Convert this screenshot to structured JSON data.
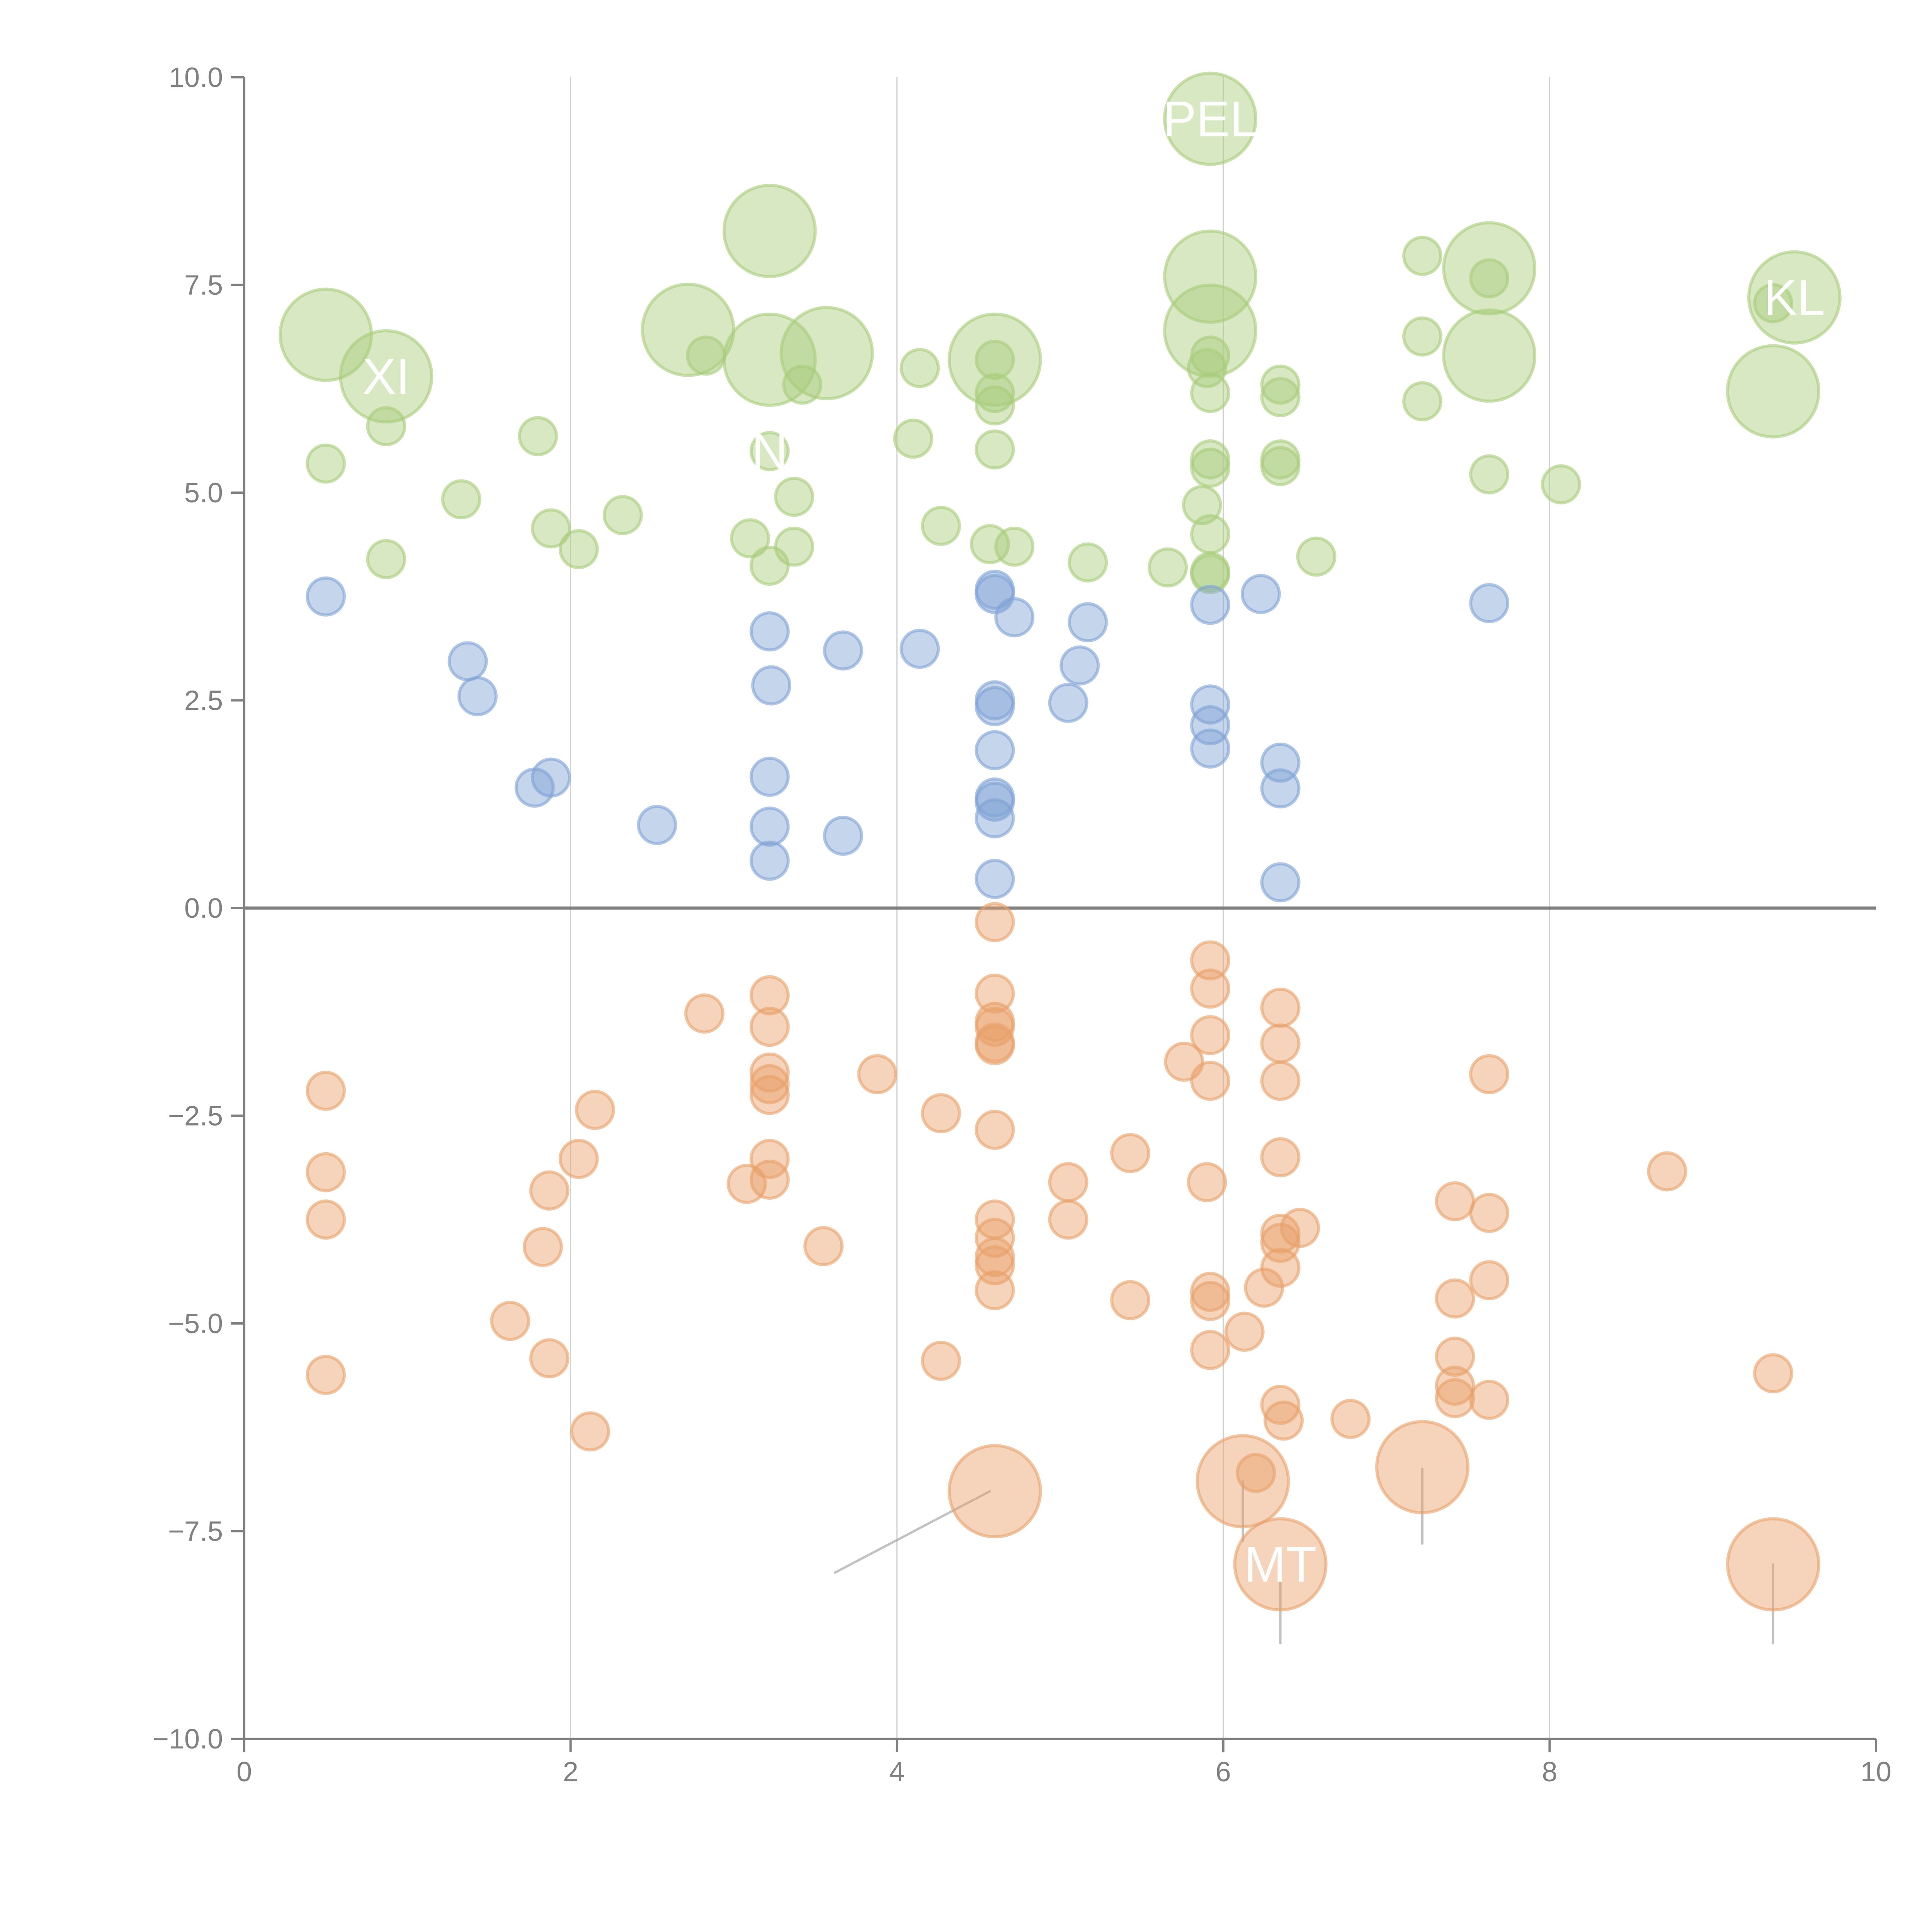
{
  "chart_data": {
    "type": "scatter",
    "title": "",
    "xlabel": "",
    "ylabel": "",
    "xlim": [
      0,
      10
    ],
    "ylim": [
      -10,
      10
    ],
    "x_ticks": [
      "0",
      "2",
      "4",
      "6",
      "8",
      "10"
    ],
    "y_ticks": [
      "−10.0",
      "−7.5",
      "−5.0",
      "−2.5",
      "0.0",
      "2.5",
      "5.0",
      "7.5",
      "10.0"
    ],
    "grid": "vertical",
    "zero_line": true,
    "colors": {
      "green": "#a9cc7a",
      "blue": "#7ea1d4",
      "orange": "#e8a069"
    },
    "series": [
      {
        "name": "green",
        "points": [
          {
            "x": 0.5,
            "y": 6.9,
            "size": "large"
          },
          {
            "x": 0.87,
            "y": 6.4,
            "size": "large",
            "label": "XI"
          },
          {
            "x": 0.87,
            "y": 5.8
          },
          {
            "x": 0.5,
            "y": 5.35
          },
          {
            "x": 0.87,
            "y": 4.2
          },
          {
            "x": 1.33,
            "y": 4.92
          },
          {
            "x": 1.8,
            "y": 5.68
          },
          {
            "x": 1.88,
            "y": 4.57
          },
          {
            "x": 2.05,
            "y": 4.32
          },
          {
            "x": 2.32,
            "y": 4.73
          },
          {
            "x": 2.72,
            "y": 6.96,
            "size": "large"
          },
          {
            "x": 2.83,
            "y": 6.65
          },
          {
            "x": 3.22,
            "y": 8.15,
            "size": "large"
          },
          {
            "x": 3.22,
            "y": 6.6,
            "size": "large"
          },
          {
            "x": 3.57,
            "y": 6.68,
            "size": "large"
          },
          {
            "x": 3.42,
            "y": 6.3
          },
          {
            "x": 3.22,
            "y": 5.5,
            "label": "N"
          },
          {
            "x": 3.37,
            "y": 4.95
          },
          {
            "x": 3.1,
            "y": 4.45
          },
          {
            "x": 3.37,
            "y": 4.35
          },
          {
            "x": 3.22,
            "y": 4.12
          },
          {
            "x": 4.14,
            "y": 6.5
          },
          {
            "x": 4.1,
            "y": 5.65
          },
          {
            "x": 4.27,
            "y": 4.6
          },
          {
            "x": 4.57,
            "y": 4.38
          },
          {
            "x": 4.72,
            "y": 4.35
          },
          {
            "x": 4.6,
            "y": 6.6,
            "size": "large"
          },
          {
            "x": 4.6,
            "y": 6.6
          },
          {
            "x": 4.6,
            "y": 6.2
          },
          {
            "x": 4.6,
            "y": 6.05
          },
          {
            "x": 4.6,
            "y": 5.52
          },
          {
            "x": 5.17,
            "y": 4.16
          },
          {
            "x": 5.66,
            "y": 4.1
          },
          {
            "x": 5.92,
            "y": 9.5,
            "size": "large",
            "label": "PEL"
          },
          {
            "x": 5.92,
            "y": 7.6,
            "size": "large"
          },
          {
            "x": 5.92,
            "y": 6.95,
            "size": "large"
          },
          {
            "x": 5.92,
            "y": 6.65
          },
          {
            "x": 5.9,
            "y": 6.5
          },
          {
            "x": 5.92,
            "y": 6.2
          },
          {
            "x": 5.92,
            "y": 5.4
          },
          {
            "x": 5.92,
            "y": 5.3
          },
          {
            "x": 5.87,
            "y": 4.85
          },
          {
            "x": 5.92,
            "y": 4.5
          },
          {
            "x": 5.92,
            "y": 4.05
          },
          {
            "x": 5.92,
            "y": 4.02
          },
          {
            "x": 6.35,
            "y": 6.3
          },
          {
            "x": 6.35,
            "y": 6.15
          },
          {
            "x": 6.35,
            "y": 5.4
          },
          {
            "x": 6.35,
            "y": 5.32
          },
          {
            "x": 6.57,
            "y": 4.23
          },
          {
            "x": 7.22,
            "y": 7.85
          },
          {
            "x": 7.22,
            "y": 6.88
          },
          {
            "x": 7.22,
            "y": 6.1
          },
          {
            "x": 7.63,
            "y": 7.7,
            "size": "large"
          },
          {
            "x": 7.63,
            "y": 7.58
          },
          {
            "x": 7.63,
            "y": 6.65,
            "size": "large"
          },
          {
            "x": 7.63,
            "y": 5.22
          },
          {
            "x": 8.07,
            "y": 5.1
          },
          {
            "x": 9.5,
            "y": 7.35,
            "size": "large",
            "label": "KL"
          },
          {
            "x": 9.37,
            "y": 7.28
          },
          {
            "x": 9.37,
            "y": 6.22,
            "size": "large"
          }
        ]
      },
      {
        "name": "blue",
        "points": [
          {
            "x": 0.5,
            "y": 3.75
          },
          {
            "x": 1.37,
            "y": 2.97
          },
          {
            "x": 1.43,
            "y": 2.55
          },
          {
            "x": 1.78,
            "y": 1.45
          },
          {
            "x": 1.88,
            "y": 1.57
          },
          {
            "x": 2.53,
            "y": 1.0
          },
          {
            "x": 3.22,
            "y": 3.33
          },
          {
            "x": 3.23,
            "y": 2.68
          },
          {
            "x": 3.22,
            "y": 1.58
          },
          {
            "x": 3.22,
            "y": 0.98
          },
          {
            "x": 3.22,
            "y": 0.57
          },
          {
            "x": 3.67,
            "y": 3.1
          },
          {
            "x": 3.67,
            "y": 0.87
          },
          {
            "x": 4.14,
            "y": 3.12
          },
          {
            "x": 4.6,
            "y": 3.83
          },
          {
            "x": 4.6,
            "y": 3.78
          },
          {
            "x": 4.72,
            "y": 3.5
          },
          {
            "x": 4.6,
            "y": 2.5
          },
          {
            "x": 4.6,
            "y": 2.43
          },
          {
            "x": 4.6,
            "y": 1.9
          },
          {
            "x": 4.6,
            "y": 1.33
          },
          {
            "x": 4.6,
            "y": 1.28
          },
          {
            "x": 4.6,
            "y": 1.08
          },
          {
            "x": 4.6,
            "y": 0.35
          },
          {
            "x": 5.05,
            "y": 2.47
          },
          {
            "x": 5.12,
            "y": 2.92
          },
          {
            "x": 5.17,
            "y": 3.44
          },
          {
            "x": 5.92,
            "y": 3.65
          },
          {
            "x": 5.92,
            "y": 2.45
          },
          {
            "x": 5.92,
            "y": 2.2
          },
          {
            "x": 5.92,
            "y": 1.92
          },
          {
            "x": 6.23,
            "y": 3.78
          },
          {
            "x": 6.35,
            "y": 1.75
          },
          {
            "x": 6.35,
            "y": 1.44
          },
          {
            "x": 6.35,
            "y": 0.31
          },
          {
            "x": 7.63,
            "y": 3.67
          }
        ]
      },
      {
        "name": "orange",
        "points": [
          {
            "x": 0.5,
            "y": -2.2
          },
          {
            "x": 0.5,
            "y": -3.18
          },
          {
            "x": 0.5,
            "y": -3.75
          },
          {
            "x": 0.5,
            "y": -5.62
          },
          {
            "x": 1.63,
            "y": -4.97
          },
          {
            "x": 1.83,
            "y": -4.08
          },
          {
            "x": 1.87,
            "y": -3.4
          },
          {
            "x": 1.87,
            "y": -5.42
          },
          {
            "x": 2.05,
            "y": -3.02
          },
          {
            "x": 2.15,
            "y": -2.43
          },
          {
            "x": 2.12,
            "y": -6.3
          },
          {
            "x": 2.82,
            "y": -1.27
          },
          {
            "x": 3.22,
            "y": -1.05
          },
          {
            "x": 3.22,
            "y": -1.43
          },
          {
            "x": 3.22,
            "y": -1.98
          },
          {
            "x": 3.22,
            "y": -2.12
          },
          {
            "x": 3.22,
            "y": -2.25
          },
          {
            "x": 3.22,
            "y": -3.02
          },
          {
            "x": 3.08,
            "y": -3.32
          },
          {
            "x": 3.22,
            "y": -3.27
          },
          {
            "x": 3.55,
            "y": -4.07
          },
          {
            "x": 3.88,
            "y": -2.0
          },
          {
            "x": 4.27,
            "y": -2.47
          },
          {
            "x": 4.27,
            "y": -5.45
          },
          {
            "x": 4.6,
            "y": -0.17
          },
          {
            "x": 4.6,
            "y": -1.03
          },
          {
            "x": 4.6,
            "y": -1.37
          },
          {
            "x": 4.6,
            "y": -1.43
          },
          {
            "x": 4.6,
            "y": -1.62
          },
          {
            "x": 4.6,
            "y": -1.65
          },
          {
            "x": 4.6,
            "y": -2.67
          },
          {
            "x": 4.6,
            "y": -3.75
          },
          {
            "x": 4.6,
            "y": -3.97
          },
          {
            "x": 4.6,
            "y": -4.2
          },
          {
            "x": 4.6,
            "y": -4.3
          },
          {
            "x": 4.6,
            "y": -4.6
          },
          {
            "x": 4.6,
            "y": -7.02,
            "size": "large"
          },
          {
            "x": 5.05,
            "y": -3.3
          },
          {
            "x": 5.05,
            "y": -3.75
          },
          {
            "x": 5.43,
            "y": -2.95
          },
          {
            "x": 5.43,
            "y": -4.72
          },
          {
            "x": 5.76,
            "y": -1.85
          },
          {
            "x": 5.92,
            "y": -0.63
          },
          {
            "x": 5.92,
            "y": -0.97
          },
          {
            "x": 5.92,
            "y": -1.53
          },
          {
            "x": 5.92,
            "y": -2.08
          },
          {
            "x": 5.9,
            "y": -3.3
          },
          {
            "x": 5.92,
            "y": -4.62
          },
          {
            "x": 5.92,
            "y": -4.73
          },
          {
            "x": 5.92,
            "y": -5.32
          },
          {
            "x": 6.13,
            "y": -5.1
          },
          {
            "x": 6.12,
            "y": -6.9,
            "size": "large"
          },
          {
            "x": 6.2,
            "y": -6.8
          },
          {
            "x": 6.35,
            "y": -7.9,
            "size": "large",
            "label": "MT"
          },
          {
            "x": 6.25,
            "y": -4.57
          },
          {
            "x": 6.35,
            "y": -1.2
          },
          {
            "x": 6.35,
            "y": -1.63
          },
          {
            "x": 6.35,
            "y": -2.08
          },
          {
            "x": 6.35,
            "y": -3.0
          },
          {
            "x": 6.35,
            "y": -3.92
          },
          {
            "x": 6.35,
            "y": -4.03
          },
          {
            "x": 6.47,
            "y": -3.85
          },
          {
            "x": 6.35,
            "y": -4.33
          },
          {
            "x": 6.35,
            "y": -5.98
          },
          {
            "x": 6.37,
            "y": -6.17
          },
          {
            "x": 6.78,
            "y": -6.15
          },
          {
            "x": 7.22,
            "y": -6.73,
            "size": "large"
          },
          {
            "x": 7.42,
            "y": -3.53
          },
          {
            "x": 7.42,
            "y": -4.7
          },
          {
            "x": 7.42,
            "y": -5.4
          },
          {
            "x": 7.42,
            "y": -5.75
          },
          {
            "x": 7.42,
            "y": -5.9
          },
          {
            "x": 7.63,
            "y": -2.0
          },
          {
            "x": 7.63,
            "y": -3.67
          },
          {
            "x": 7.63,
            "y": -4.48
          },
          {
            "x": 7.63,
            "y": -5.92
          },
          {
            "x": 8.72,
            "y": -3.17
          },
          {
            "x": 9.37,
            "y": -5.6
          },
          {
            "x": 9.37,
            "y": -7.9,
            "size": "large"
          }
        ]
      }
    ],
    "leader_lines": [
      {
        "from": [
          4.57,
          -7.02
        ],
        "to": [
          3.62,
          -8.0
        ]
      },
      {
        "from": [
          6.12,
          -6.9
        ],
        "to": [
          6.12,
          -7.62
        ]
      },
      {
        "from": [
          6.35,
          -7.9
        ],
        "to": [
          6.35,
          -8.85
        ]
      },
      {
        "from": [
          7.22,
          -6.75
        ],
        "to": [
          7.22,
          -7.65
        ]
      },
      {
        "from": [
          9.37,
          -7.9
        ],
        "to": [
          9.37,
          -8.85
        ]
      }
    ]
  }
}
